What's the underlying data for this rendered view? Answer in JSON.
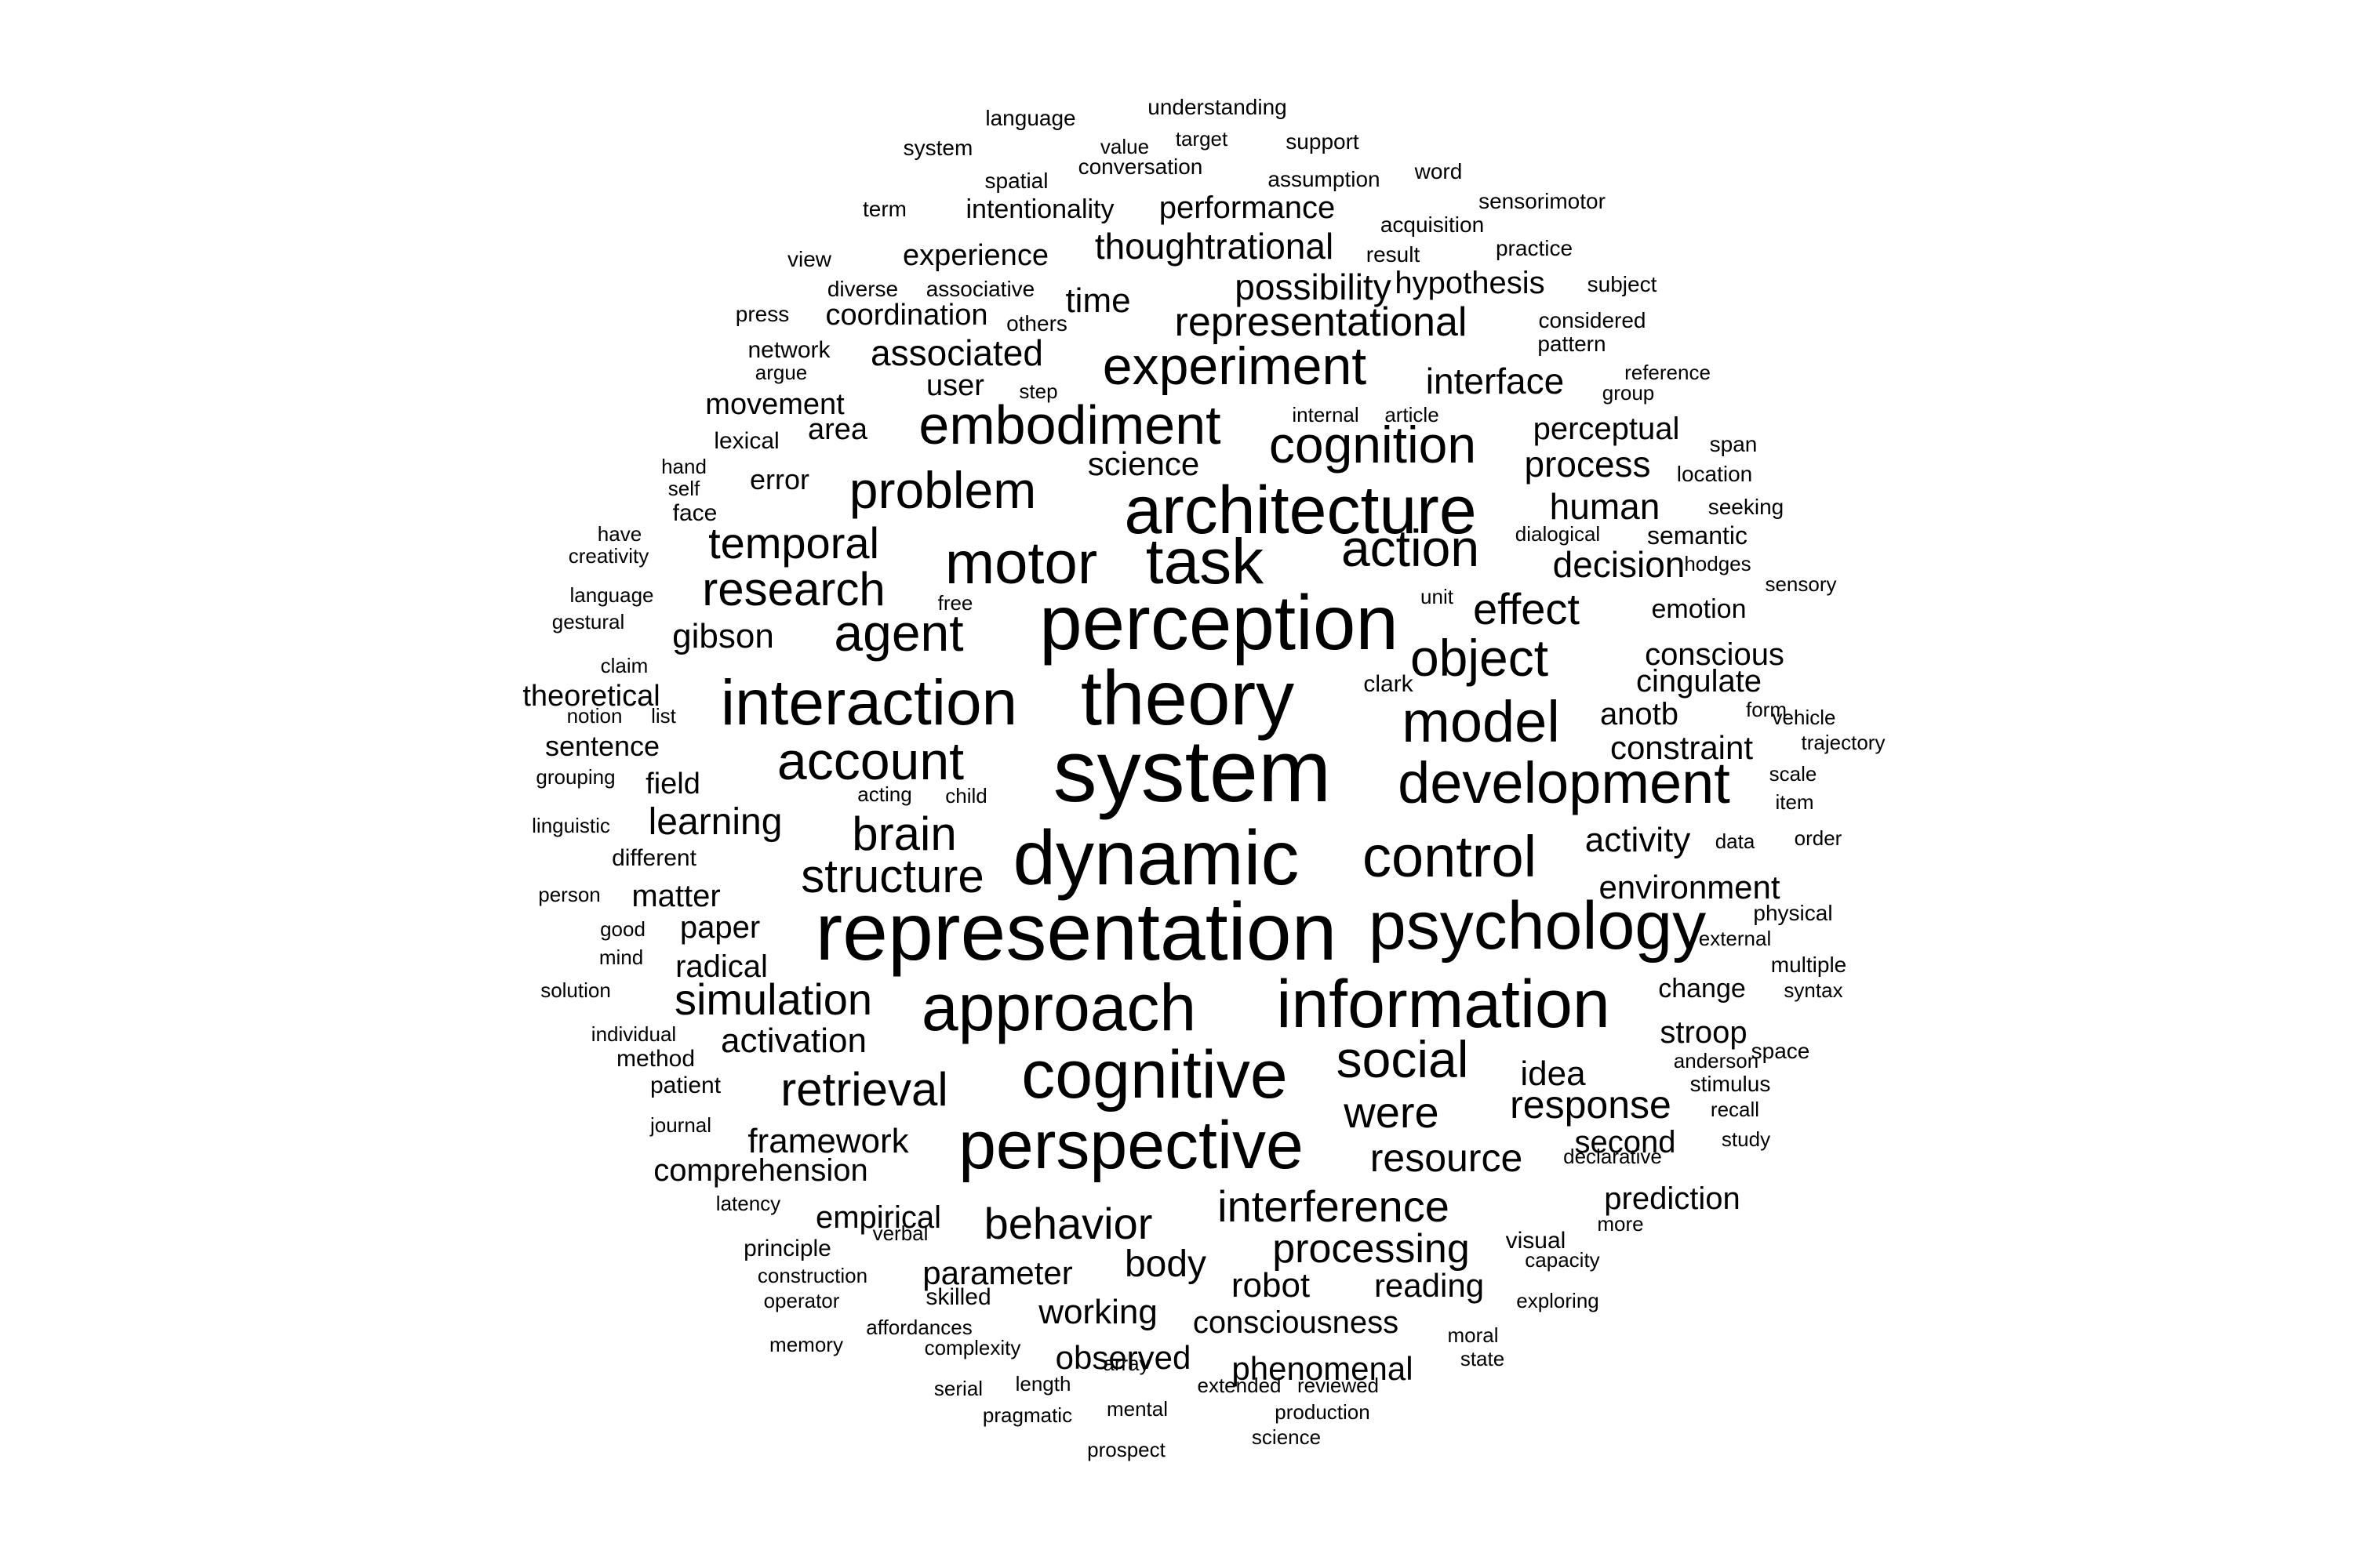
{
  "word_cloud": {
    "text_color": "#000000",
    "background": "#ffffff",
    "words": [
      "system",
      "representation",
      "perception",
      "theory",
      "dynamic",
      "psychology",
      "information",
      "cognitive",
      "perspective",
      "approach",
      "interaction",
      "architecture",
      "development",
      "model",
      "control",
      "task",
      "motor",
      "embodiment",
      "account",
      "experiment",
      "cognition",
      "action",
      "social",
      "agent",
      "object",
      "problem",
      "research",
      "brain",
      "retrieval",
      "structure",
      "simulation",
      "effect",
      "interference",
      "behavior",
      "temporal",
      "were",
      "processing",
      "response",
      "resource",
      "representational",
      "associated",
      "idea",
      "thoughtrational",
      "possibility",
      "interface",
      "human",
      "decision",
      "learning",
      "process",
      "body",
      "framework",
      "activation",
      "activity",
      "environment",
      "constraint",
      "robot",
      "reading",
      "working",
      "consciousness",
      "observed",
      "phenomenal",
      "parameter",
      "empirical",
      "comprehension",
      "prediction",
      "second",
      "stroop",
      "conscious",
      "cingulate",
      "anotb",
      "gibson",
      "science",
      "perceptual",
      "hypothesis",
      "experience",
      "time",
      "performance",
      "coordination",
      "movement",
      "area",
      "user",
      "paper",
      "radical",
      "matter",
      "field",
      "sentence",
      "theoretical",
      "emotion",
      "change",
      "intentionality",
      "language",
      "understanding",
      "system",
      "value",
      "target",
      "support",
      "conversation",
      "spatial",
      "assumption",
      "word",
      "term",
      "sensorimotor",
      "acquisition",
      "result",
      "practice",
      "view",
      "diverse",
      "associative",
      "subject",
      "press",
      "others",
      "considered",
      "network",
      "pattern",
      "argue",
      "step",
      "reference",
      "group",
      "internal",
      "article",
      "lexical",
      "span",
      "hand",
      "self",
      "error",
      "location",
      "face",
      "seeking",
      "dialogical",
      "semantic",
      "have",
      "creativity",
      "hodges",
      "sensory",
      "language",
      "free",
      "unit",
      "gestural",
      "claim",
      "clark",
      "notion",
      "list",
      "form",
      "vehicle",
      "trajectory",
      "grouping",
      "scale",
      "acting",
      "child",
      "item",
      "linguistic",
      "data",
      "order",
      "different",
      "person",
      "good",
      "physical",
      "external",
      "mind",
      "multiple",
      "solution",
      "syntax",
      "individual",
      "method",
      "anderson",
      "space",
      "patient",
      "stimulus",
      "recall",
      "journal",
      "study",
      "declarative",
      "latency",
      "more",
      "principle",
      "verbal",
      "visual",
      "capacity",
      "construction",
      "operator",
      "skilled",
      "exploring",
      "affordances",
      "moral",
      "memory",
      "complexity",
      "array",
      "state",
      "serial",
      "length",
      "extended",
      "reviewed",
      "pragmatic",
      "mental",
      "production",
      "prospect",
      "science"
    ]
  }
}
